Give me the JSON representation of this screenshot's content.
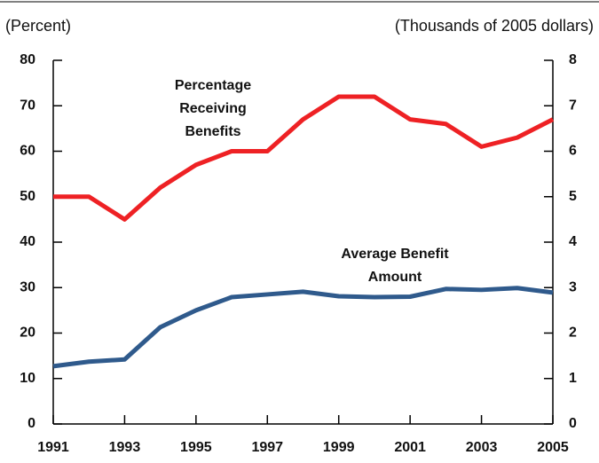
{
  "chart_data": {
    "type": "line",
    "y_label": "(Percent)",
    "y2_label": "(Thousands of 2005 dollars)",
    "x": [
      1991,
      1992,
      1993,
      1994,
      1995,
      1996,
      1997,
      1998,
      1999,
      2000,
      2001,
      2002,
      2003,
      2004,
      2005
    ],
    "xlim": [
      1991,
      2005
    ],
    "xticks": [
      1991,
      1993,
      1995,
      1997,
      1999,
      2001,
      2003,
      2005
    ],
    "ylim": [
      0,
      80
    ],
    "yticks": [
      0,
      10,
      20,
      30,
      40,
      50,
      60,
      70,
      80
    ],
    "y2lim": [
      0,
      8
    ],
    "y2ticks": [
      0,
      1,
      2,
      3,
      4,
      5,
      6,
      7,
      8
    ],
    "series": [
      {
        "name": "Percentage Receiving Benefits",
        "color": "#ee2124",
        "values": [
          50,
          50,
          45,
          52,
          57,
          60,
          60,
          67,
          72,
          72,
          67,
          66,
          61,
          63,
          67
        ]
      },
      {
        "name": "Average Benefit Amount",
        "color": "#2f5a8c",
        "axis": "y2",
        "values": [
          1.27,
          1.37,
          1.42,
          2.13,
          2.5,
          2.79,
          2.85,
          2.91,
          2.81,
          2.79,
          2.8,
          2.97,
          2.95,
          2.99,
          2.89
        ]
      }
    ],
    "annotations": [
      {
        "series": 0,
        "lines": [
          "Percentage",
          "Receiving",
          "Benefits"
        ]
      },
      {
        "series": 1,
        "lines": [
          "Average Benefit",
          "Amount"
        ]
      }
    ]
  }
}
